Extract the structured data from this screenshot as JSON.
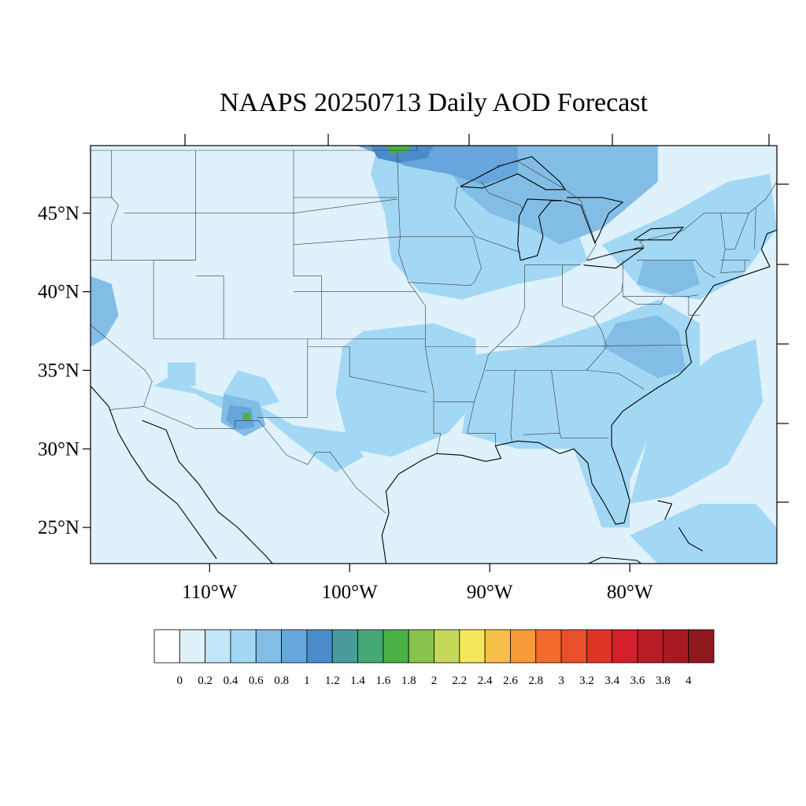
{
  "title": "NAAPS 20250713 Daily AOD Forecast",
  "map_extent": {
    "lon_min": -118.5,
    "lon_max": -69.5,
    "lat_min": 22.7,
    "lat_max": 49.3
  },
  "lat_ticks": [
    {
      "value": 45,
      "label": "45°N"
    },
    {
      "value": 40,
      "label": "40°N"
    },
    {
      "value": 35,
      "label": "35°N"
    },
    {
      "value": 30,
      "label": "30°N"
    },
    {
      "value": 25,
      "label": "25°N"
    }
  ],
  "lon_ticks": [
    {
      "value": -110,
      "label": "110°W"
    },
    {
      "value": -100,
      "label": "100°W"
    },
    {
      "value": -90,
      "label": "90°W"
    },
    {
      "value": -80,
      "label": "80°W"
    }
  ],
  "colorbar": {
    "colors": [
      "#ffffff",
      "#dff1fb",
      "#c0e6f8",
      "#a2d8f4",
      "#82bde6",
      "#66a6dc",
      "#4a8bca",
      "#4a9c9c",
      "#46a875",
      "#49b146",
      "#86c44c",
      "#c5d85a",
      "#f6e65b",
      "#f7bf4a",
      "#f69a3a",
      "#f26a2c",
      "#e8502a",
      "#de3426",
      "#d4202a",
      "#b81c24",
      "#a71b20",
      "#8e181b"
    ],
    "labels": [
      "0",
      "0.2",
      "0.4",
      "0.6",
      "0.8",
      "1",
      "1.2",
      "1.4",
      "1.6",
      "1.8",
      "2",
      "2.2",
      "2.4",
      "2.6",
      "2.8",
      "3",
      "3.2",
      "3.4",
      "3.6",
      "3.8",
      "4"
    ]
  },
  "aod_regions": [
    {
      "level": 0.4,
      "desc": "central plains / upper midwest band"
    },
    {
      "level": 0.4,
      "desc": "southern plains Texas-Oklahoma"
    },
    {
      "level": 0.4,
      "desc": "southeast and Atlantic coast"
    },
    {
      "level": 0.4,
      "desc": "northeast"
    },
    {
      "level": 0.6,
      "desc": "Great Lakes / Ontario"
    },
    {
      "level": 0.8,
      "desc": "Manitoba / Lake of the Woods"
    },
    {
      "level": 1.0,
      "desc": "southern Manitoba core"
    },
    {
      "level": 1.6,
      "desc": "southern Manitoba peak"
    },
    {
      "level": 0.6,
      "desc": "northern California coast"
    },
    {
      "level": 0.6,
      "desc": "Virginia / Carolinas"
    },
    {
      "level": 0.6,
      "desc": "Pennsylvania"
    },
    {
      "level": 0.8,
      "desc": "southwest New Mexico / Arizona"
    },
    {
      "level": 1.6,
      "desc": "southwest New Mexico peak"
    },
    {
      "level": 0.4,
      "desc": "Caribbean / Bahamas"
    }
  ]
}
